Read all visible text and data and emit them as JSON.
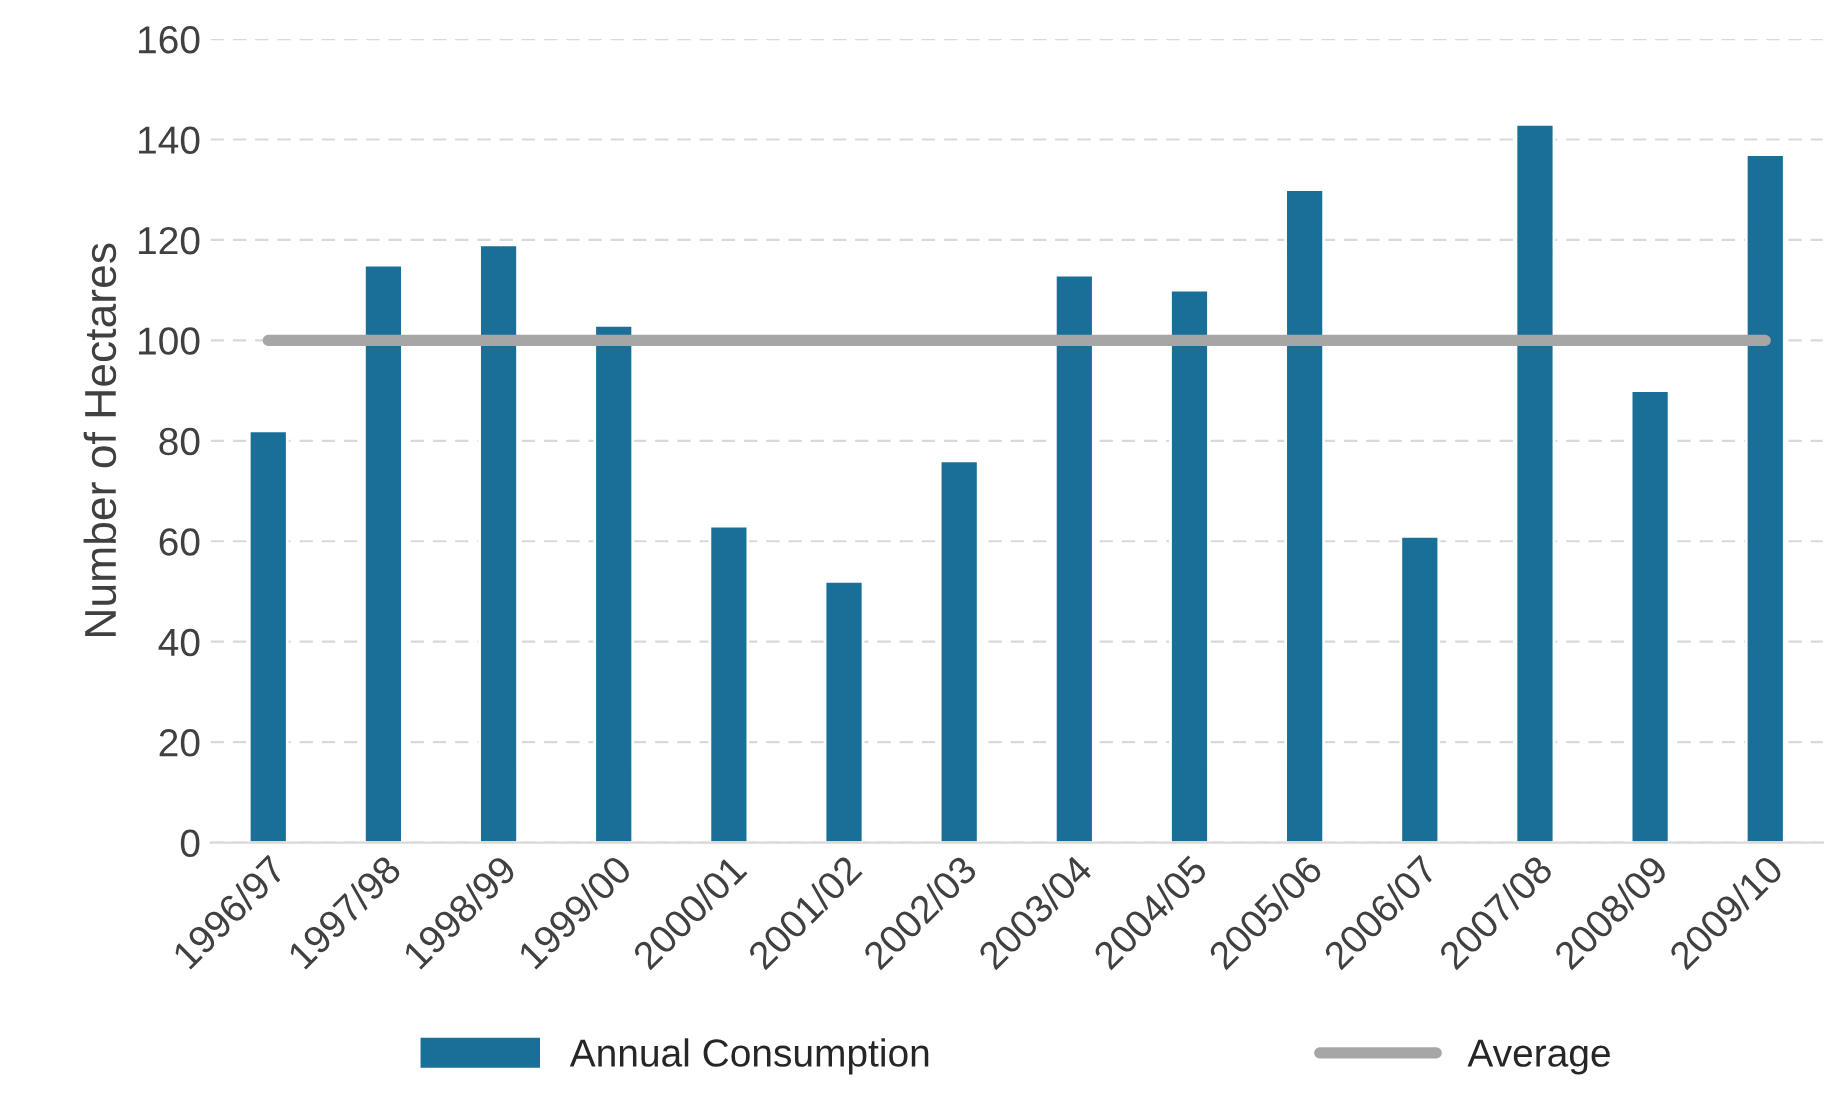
{
  "chart_data": {
    "type": "bar",
    "ylabel": "Number of Hectares",
    "categories": [
      "1996/97",
      "1997/98",
      "1998/99",
      "1999/00",
      "2000/01",
      "2001/02",
      "2002/03",
      "2003/04",
      "2004/05",
      "2005/06",
      "2006/07",
      "2007/08",
      "2008/09",
      "2009/10"
    ],
    "series": [
      {
        "name": "Annual Consumption",
        "color": "#1a6f98",
        "values": [
          82,
          115,
          119,
          103,
          63,
          52,
          76,
          113,
          110,
          130,
          61,
          143,
          90,
          137
        ]
      },
      {
        "name": "Average",
        "type": "line",
        "color": "#a6a6a6",
        "values": [
          100,
          100,
          100,
          100,
          100,
          100,
          100,
          100,
          100,
          100,
          100,
          100,
          100,
          100
        ]
      }
    ],
    "ylim": [
      0,
      160
    ],
    "yticks": [
      0,
      20,
      40,
      60,
      80,
      100,
      120,
      140,
      160
    ],
    "grid": "y",
    "legend": "bottom"
  }
}
